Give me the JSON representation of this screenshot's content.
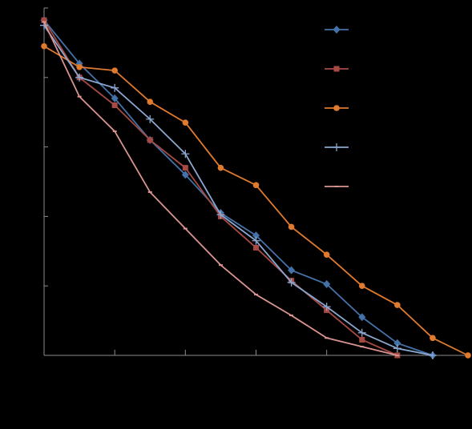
{
  "chart_data": {
    "type": "line",
    "title": "",
    "xlabel": "",
    "ylabel": "",
    "xlim": [
      0,
      12
    ],
    "ylim": [
      0,
      1
    ],
    "grid": false,
    "legend_position": "top-right",
    "x_tick_positions": [
      2,
      4,
      6,
      8
    ],
    "y_tick_positions": [
      0.2,
      0.4,
      0.6,
      0.8,
      1.0
    ],
    "series": [
      {
        "color": "#4472a8",
        "marker": "diamond",
        "x": [
          0,
          1,
          2,
          3,
          4,
          5,
          6,
          7,
          8,
          9,
          10,
          11
        ],
        "y": [
          0.965,
          0.84,
          0.74,
          0.62,
          0.52,
          0.41,
          0.345,
          0.245,
          0.205,
          0.11,
          0.035,
          0.0
        ]
      },
      {
        "color": "#a84a44",
        "marker": "square",
        "x": [
          0,
          1,
          2,
          3,
          4,
          5,
          6,
          7,
          8,
          9,
          10
        ],
        "y": [
          0.965,
          0.8,
          0.72,
          0.62,
          0.54,
          0.4,
          0.31,
          0.215,
          0.13,
          0.045,
          0.0
        ]
      },
      {
        "color": "#e07a2e",
        "marker": "circle",
        "x": [
          0,
          1,
          2,
          3,
          4,
          5,
          6,
          7,
          8,
          9,
          10,
          11,
          12
        ],
        "y": [
          0.89,
          0.83,
          0.82,
          0.73,
          0.67,
          0.54,
          0.49,
          0.37,
          0.29,
          0.2,
          0.145,
          0.05,
          0.0
        ]
      },
      {
        "color": "#8aa7d0",
        "marker": "plus",
        "x": [
          0,
          1,
          2,
          3,
          4,
          5,
          6,
          7,
          8,
          9,
          10,
          11
        ],
        "y": [
          0.95,
          0.8,
          0.77,
          0.68,
          0.58,
          0.405,
          0.33,
          0.21,
          0.14,
          0.065,
          0.02,
          0.0
        ]
      },
      {
        "color": "#d99490",
        "marker": "dash",
        "x": [
          0,
          1,
          2,
          3,
          4,
          5,
          6,
          7,
          8,
          9,
          10
        ],
        "y": [
          0.96,
          0.745,
          0.645,
          0.47,
          0.365,
          0.26,
          0.175,
          0.115,
          0.05,
          0.025,
          0.0
        ]
      }
    ]
  }
}
